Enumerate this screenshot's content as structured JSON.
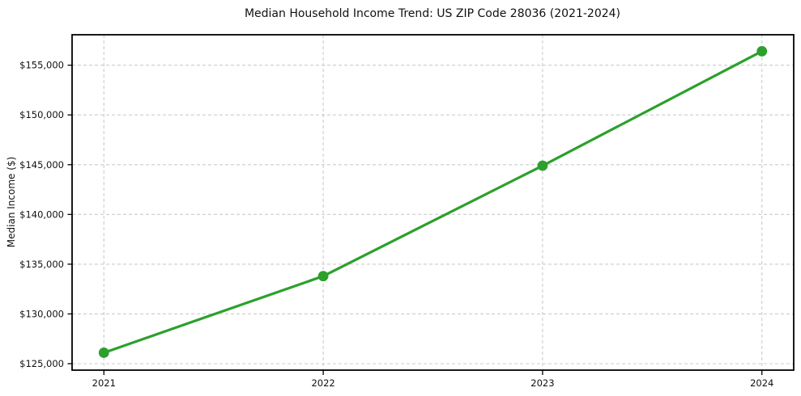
{
  "chart_data": {
    "type": "line",
    "title": "Median Household Income Trend: US ZIP Code 28036 (2021-2024)",
    "xlabel": "",
    "ylabel": "Median Income ($)",
    "x": [
      2021,
      2022,
      2023,
      2024
    ],
    "x_tick_labels": [
      "2021",
      "2022",
      "2023",
      "2024"
    ],
    "y_ticks": [
      125000,
      130000,
      135000,
      140000,
      145000,
      150000,
      155000
    ],
    "y_tick_labels": [
      "$125,000",
      "$130,000",
      "$135,000",
      "$140,000",
      "$145,000",
      "$150,000",
      "$155,000"
    ],
    "series": [
      {
        "name": "Median household income",
        "values": [
          126100,
          133800,
          144900,
          156400
        ],
        "color": "#2ca02c",
        "marker": "circle"
      }
    ],
    "xlim": [
      2020.855,
      2024.145
    ],
    "ylim": [
      124350,
      158060
    ],
    "grid": true,
    "grid_style": "dashed",
    "grid_color": "#cccccc",
    "legend_position": "none",
    "background_color": "#ffffff",
    "line_width": 3.2,
    "marker_radius": 6.4
  }
}
